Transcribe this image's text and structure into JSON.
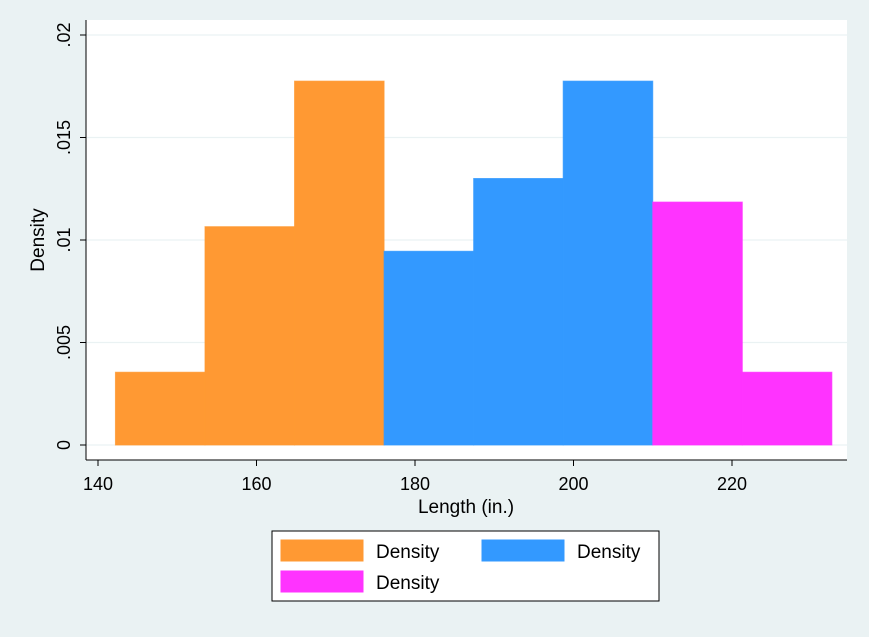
{
  "chart_data": {
    "type": "bar",
    "histogram": true,
    "xlabel": "Length (in.)",
    "ylabel": "Density",
    "xlim": [
      140,
      235
    ],
    "ylim": [
      0,
      0.02
    ],
    "x_ticks": [
      {
        "value": 140,
        "label": "140"
      },
      {
        "value": 160,
        "label": "160"
      },
      {
        "value": 180,
        "label": "180"
      },
      {
        "value": 200,
        "label": "200"
      },
      {
        "value": 220,
        "label": "220"
      }
    ],
    "y_ticks": [
      {
        "value": 0,
        "label": "0"
      },
      {
        "value": 0.005,
        "label": ".005"
      },
      {
        "value": 0.01,
        "label": ".01"
      },
      {
        "value": 0.015,
        "label": ".015"
      },
      {
        "value": 0.02,
        "label": ".02"
      }
    ],
    "grid": true,
    "legend_position": "bottom",
    "series": [
      {
        "name": "Density",
        "color": "#ff9933",
        "bins": [
          {
            "x0": 142.2,
            "x1": 153.5,
            "value": 0.00355
          },
          {
            "x0": 153.5,
            "x1": 164.8,
            "value": 0.01065
          },
          {
            "x0": 164.8,
            "x1": 176.1,
            "value": 0.01775
          }
        ]
      },
      {
        "name": "Density",
        "color": "#3399ff",
        "bins": [
          {
            "x0": 176.1,
            "x1": 187.4,
            "value": 0.00945
          },
          {
            "x0": 187.4,
            "x1": 198.7,
            "value": 0.013
          },
          {
            "x0": 198.7,
            "x1": 210.0,
            "value": 0.01775
          }
        ]
      },
      {
        "name": "Density",
        "color": "#ff33ff",
        "bins": [
          {
            "x0": 210.0,
            "x1": 221.3,
            "value": 0.01185
          },
          {
            "x0": 221.3,
            "x1": 232.6,
            "value": 0.00355
          }
        ]
      }
    ]
  }
}
